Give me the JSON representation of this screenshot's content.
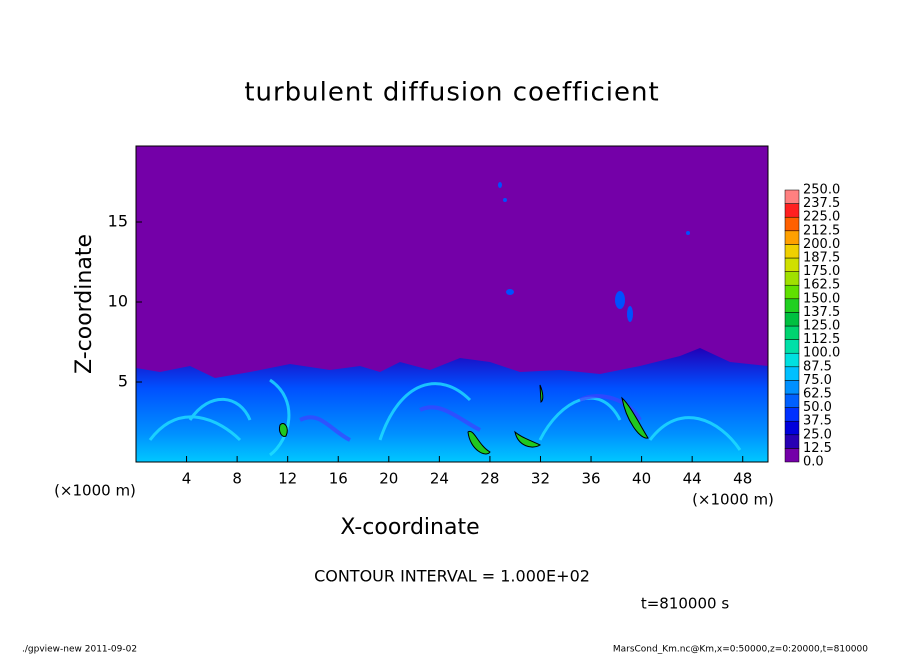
{
  "chart_data": {
    "type": "contour",
    "title": "turbulent diffusion coefficient",
    "xlabel": "X-coordinate",
    "ylabel": "Z-coordinate",
    "x_unit": "(×1000 m)",
    "y_unit": "(×1000 m)",
    "xlim": [
      0,
      50
    ],
    "ylim": [
      0,
      19.75
    ],
    "xticks": [
      4,
      8,
      12,
      16,
      20,
      24,
      28,
      32,
      36,
      40,
      44,
      48
    ],
    "yticks": [
      5,
      10,
      15
    ],
    "levels": [
      {
        "value": 0,
        "label": "0.0"
      },
      12.5,
      {
        "value": 25,
        "label": "25.0"
      },
      37.5,
      {
        "value": 50,
        "label": "50.0"
      },
      62.5,
      {
        "value": 75,
        "label": "75.0"
      },
      87.5,
      {
        "value": 100,
        "label": "100.0"
      },
      112.5,
      {
        "value": 125,
        "label": "125.0"
      },
      137.5,
      {
        "value": 150,
        "label": "150.0"
      },
      162.5,
      {
        "value": 175,
        "label": "175.0"
      },
      187.5,
      {
        "value": 200,
        "label": "200.0"
      },
      212.5,
      {
        "value": 225,
        "label": "225.0"
      },
      237.5,
      {
        "value": 250,
        "label": "250.0"
      }
    ],
    "colors": [
      "#7400a8",
      "#2800b4",
      "#0000dc",
      "#0030ff",
      "#0060ff",
      "#0090ff",
      "#00c0ff",
      "#00e0e0",
      "#00e0a8",
      "#00d470",
      "#00c040",
      "#20d020",
      "#60e000",
      "#a0e000",
      "#d0e000",
      "#f0d000",
      "#ffa000",
      "#ff6000",
      "#ff2020",
      "#ff8080"
    ],
    "annotations": [
      "CONTOUR INTERVAL = 1.000E+02",
      "t=810000 s"
    ]
  },
  "footer": {
    "left": "./gpview-new  2011-09-02",
    "right": "MarsCond_Km.nc@Km,x=0:50000,z=0:20000,t=810000"
  }
}
